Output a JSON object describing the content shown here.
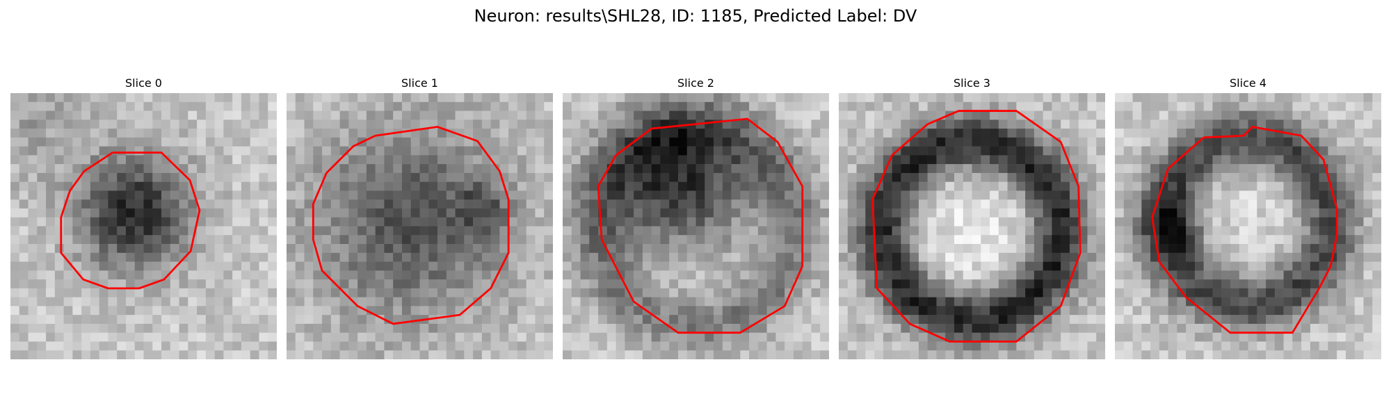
{
  "figure": {
    "title": "Neuron: results\\SHL28, ID: 1185, Predicted Label: DV"
  },
  "slices": [
    {
      "title": "Slice 0",
      "pattern": "dark-blob"
    },
    {
      "title": "Slice 1",
      "pattern": "large-dark-disc"
    },
    {
      "title": "Slice 2",
      "pattern": "dark-upper-crescent"
    },
    {
      "title": "Slice 3",
      "pattern": "dark-ring-bright-center"
    },
    {
      "title": "Slice 4",
      "pattern": "dark-ring-left-heavy"
    }
  ],
  "colors": {
    "contour": "#ff0000",
    "colormap": "grayscale"
  }
}
